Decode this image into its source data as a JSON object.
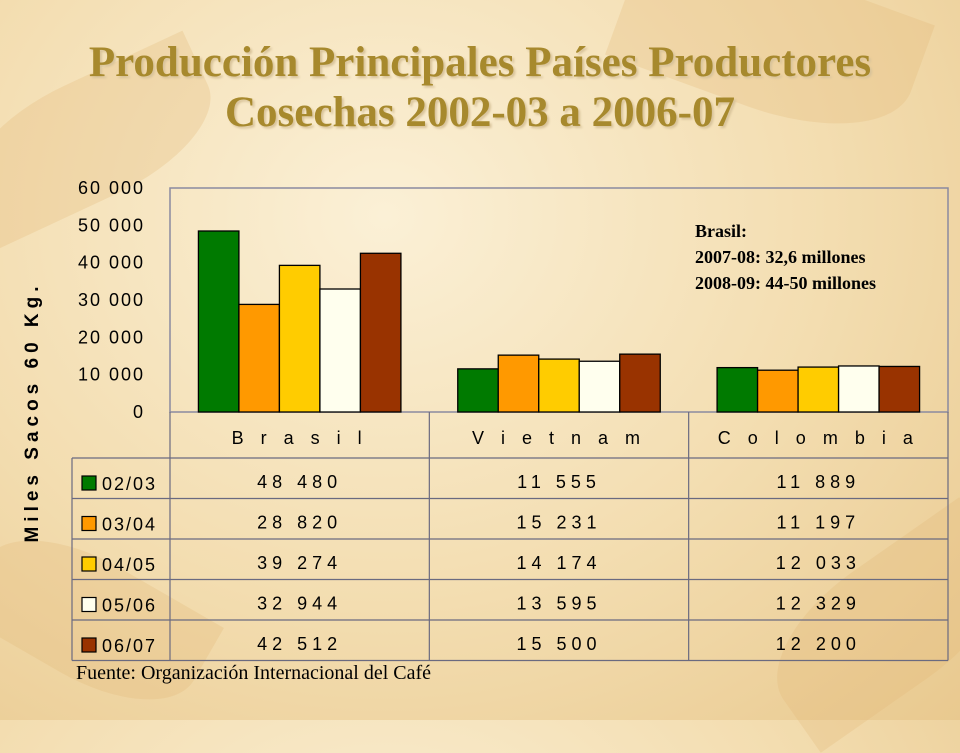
{
  "slide": {
    "title_line1": "Producción Principales Países Productores",
    "title_line2": "Cosechas 2002-03 a 2006-07",
    "note_line1": "Brasil:",
    "note_line2": "2007-08:  32,6 millones",
    "note_line3": "2008-09: 44-50 millones",
    "source": "Fuente: Organización Internacional del Café"
  },
  "chart_data": {
    "type": "bar",
    "title": "",
    "ylabel": "Miles Sacos 60 Kg.",
    "xlabel": "",
    "ylim": [
      0,
      60000
    ],
    "yticks": [
      0,
      10000,
      20000,
      30000,
      40000,
      50000,
      60000
    ],
    "ytick_labels": [
      "0",
      "10 000",
      "20 000",
      "30 000",
      "40 000",
      "50 000",
      "60 000"
    ],
    "categories": [
      "Brasil",
      "Vietnam",
      "Colombia"
    ],
    "category_labels": [
      "B r a s i l",
      "V i e t n a m",
      "C o l o m b i a"
    ],
    "legend": "data-table",
    "series": [
      {
        "name": "02/03",
        "color": "#007a00",
        "values": [
          48480,
          11555,
          11889
        ],
        "labels": [
          "48 480",
          "11 555",
          "11 889"
        ]
      },
      {
        "name": "03/04",
        "color": "#ff9900",
        "values": [
          28820,
          15231,
          11197
        ],
        "labels": [
          "28 820",
          "15 231",
          "11 197"
        ]
      },
      {
        "name": "04/05",
        "color": "#ffcc00",
        "values": [
          39274,
          14174,
          12033
        ],
        "labels": [
          "39 274",
          "14 174",
          "12 033"
        ]
      },
      {
        "name": "05/06",
        "color": "#ffffee",
        "values": [
          32944,
          13595,
          12329
        ],
        "labels": [
          "32 944",
          "13 595",
          "12 329"
        ]
      },
      {
        "name": "06/07",
        "color": "#993300",
        "values": [
          42512,
          15500,
          12200
        ],
        "labels": [
          "42 512",
          "15 500",
          "12 200"
        ]
      }
    ]
  }
}
